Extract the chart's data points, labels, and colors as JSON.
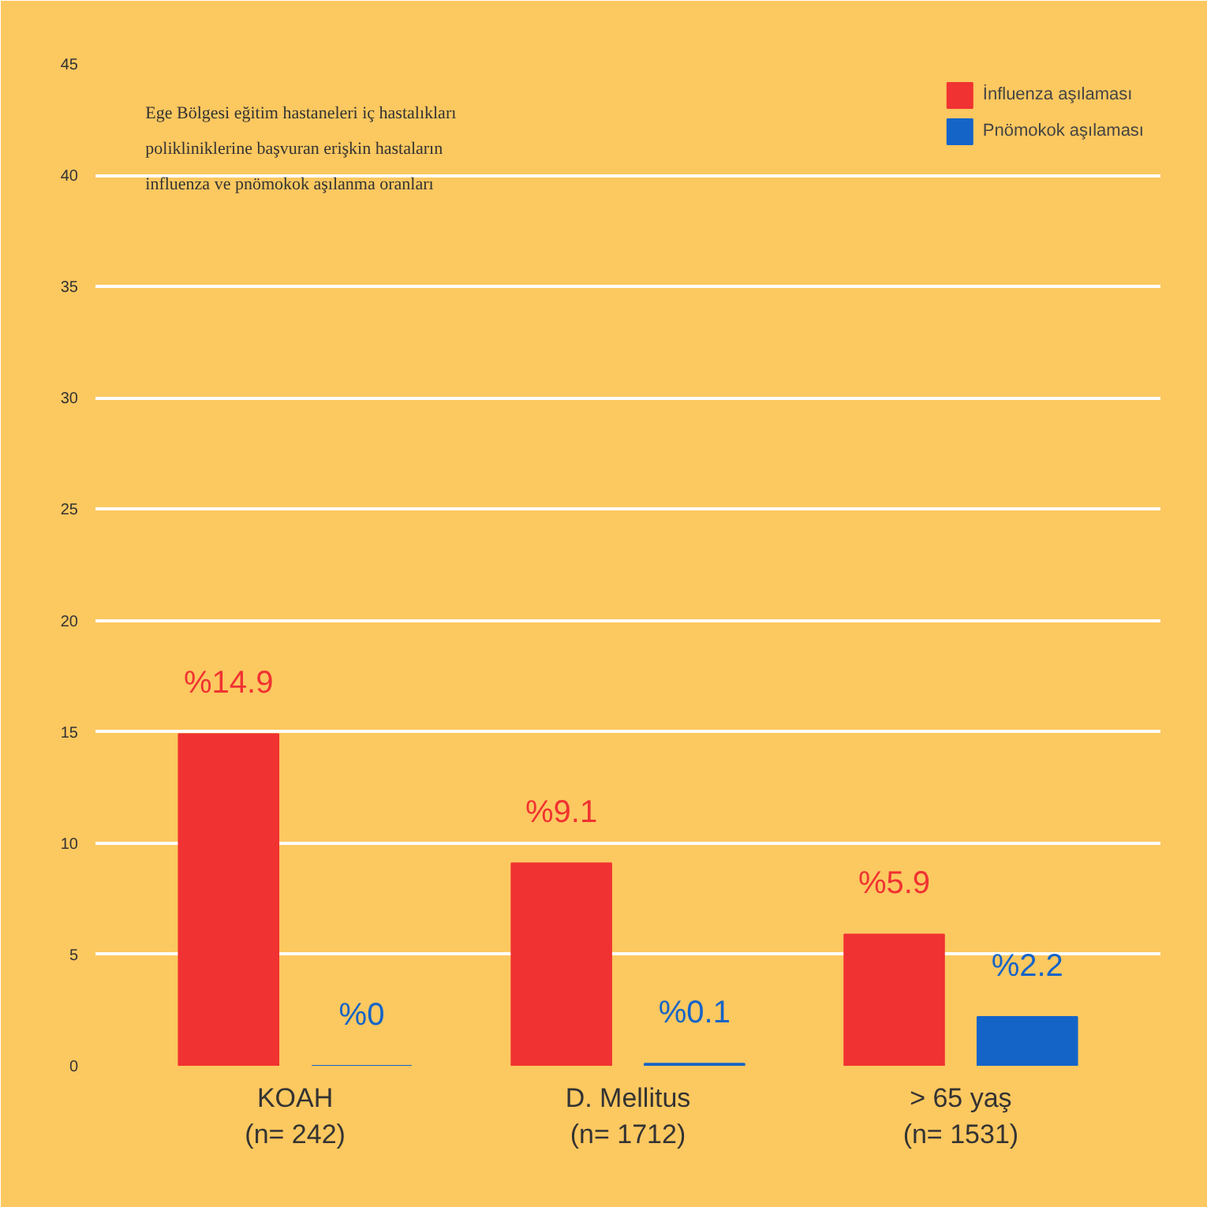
{
  "chart_data": {
    "type": "bar",
    "title": "Ege Bölgesi eğitim hastaneleri iç hastalıkları polikliniklerine başvuran erişkin hastaların influenza ve pnömokok aşılanma oranları",
    "categories": [
      "KOAH\n(n= 242)",
      "D. Mellitus\n(n= 1712)",
      "> 65 yaş\n(n= 1531)"
    ],
    "series": [
      {
        "name": "İnfluenza aşılaması",
        "color": "#f03232",
        "values": [
          14.9,
          9.1,
          5.9
        ],
        "value_labels": [
          "%14.9",
          "%9.1",
          "%5.9"
        ]
      },
      {
        "name": "Pnömokok aşılaması",
        "color": "#1464c8",
        "values": [
          0,
          0.1,
          2.2
        ],
        "value_labels": [
          "%0",
          "%0.1",
          "%2.2"
        ]
      }
    ],
    "ylim": [
      0,
      45
    ],
    "yticks": [
      0,
      5,
      10,
      15,
      20,
      25,
      30,
      35,
      40,
      45
    ],
    "grid": "y",
    "legend": "top right"
  }
}
